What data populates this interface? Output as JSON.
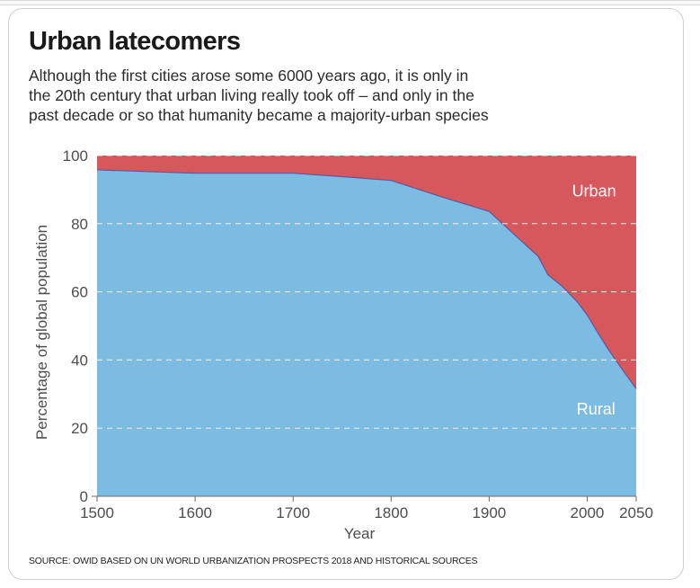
{
  "header": {
    "title": "Urban latecomers",
    "subtitle_lines": [
      "Although the first cities arose some 6000 years ago, it is only in",
      "the 20th century that urban living really took off – and only in the",
      "past decade or so that humanity became a majority-urban species"
    ]
  },
  "source": "SOURCE: OWID BASED ON UN WORLD URBANIZATION PROSPECTS 2018 AND HISTORICAL SOURCES",
  "colors": {
    "rural": "#7dbce2",
    "urban": "#d6575c",
    "grid": "#ffffff",
    "boundary": "#5a5aa0"
  },
  "chart_data": {
    "type": "area",
    "stacked": true,
    "title": "Urban latecomers",
    "xlabel": "Year",
    "ylabel": "Percentage of global population",
    "xlim": [
      1500,
      2050
    ],
    "ylim": [
      0,
      100
    ],
    "x_ticks": [
      1500,
      1600,
      1700,
      1800,
      1900,
      2000,
      2050
    ],
    "y_ticks": [
      0,
      20,
      40,
      60,
      80,
      100
    ],
    "grid": "horizontal dashed",
    "x": [
      1500,
      1600,
      1700,
      1750,
      1800,
      1850,
      1900,
      1925,
      1950,
      1960,
      1975,
      1990,
      2000,
      2010,
      2020,
      2030,
      2040,
      2050
    ],
    "series": [
      {
        "name": "Rural",
        "values": [
          95.8,
          94.8,
          94.8,
          93.8,
          92.7,
          88.0,
          83.6,
          77.0,
          70.4,
          65.0,
          61.5,
          57.0,
          53.2,
          48.4,
          43.8,
          39.6,
          35.5,
          31.6
        ]
      },
      {
        "name": "Urban",
        "values": [
          4.2,
          5.2,
          5.2,
          6.2,
          7.3,
          12.0,
          16.4,
          23.0,
          29.6,
          35.0,
          38.5,
          43.0,
          46.8,
          51.6,
          56.2,
          60.4,
          64.5,
          68.4
        ]
      }
    ],
    "annotations": [
      {
        "text": "Urban",
        "x": 2007,
        "y": 88
      },
      {
        "text": "Rural",
        "x": 2009,
        "y": 24
      }
    ]
  }
}
